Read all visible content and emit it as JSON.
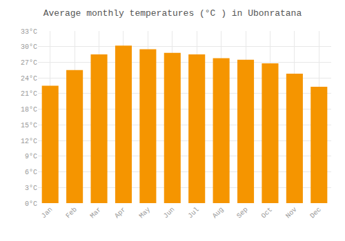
{
  "chart_data": {
    "type": "bar",
    "title": "Average monthly temperatures (°C ) in Ubonratana",
    "categories": [
      "Jan",
      "Feb",
      "Mar",
      "Apr",
      "May",
      "Jun",
      "Jul",
      "Aug",
      "Sep",
      "Oct",
      "Nov",
      "Dec"
    ],
    "values": [
      22.5,
      25.5,
      28.5,
      30.2,
      29.5,
      28.8,
      28.5,
      27.8,
      27.5,
      26.8,
      24.8,
      22.3
    ],
    "color": "#F59500",
    "ylim": [
      0,
      33
    ],
    "yticks": [
      {
        "value": 0,
        "label": "0°C"
      },
      {
        "value": 3,
        "label": "3°C"
      },
      {
        "value": 6,
        "label": "6°C"
      },
      {
        "value": 9,
        "label": "9°C"
      },
      {
        "value": 12,
        "label": "12°C"
      },
      {
        "value": 15,
        "label": "15°C"
      },
      {
        "value": 18,
        "label": "18°C"
      },
      {
        "value": 21,
        "label": "21°C"
      },
      {
        "value": 24,
        "label": "24°C"
      },
      {
        "value": 27,
        "label": "27°C"
      },
      {
        "value": 30,
        "label": "30°C"
      },
      {
        "value": 33,
        "label": "33°C"
      }
    ],
    "grid": true
  }
}
